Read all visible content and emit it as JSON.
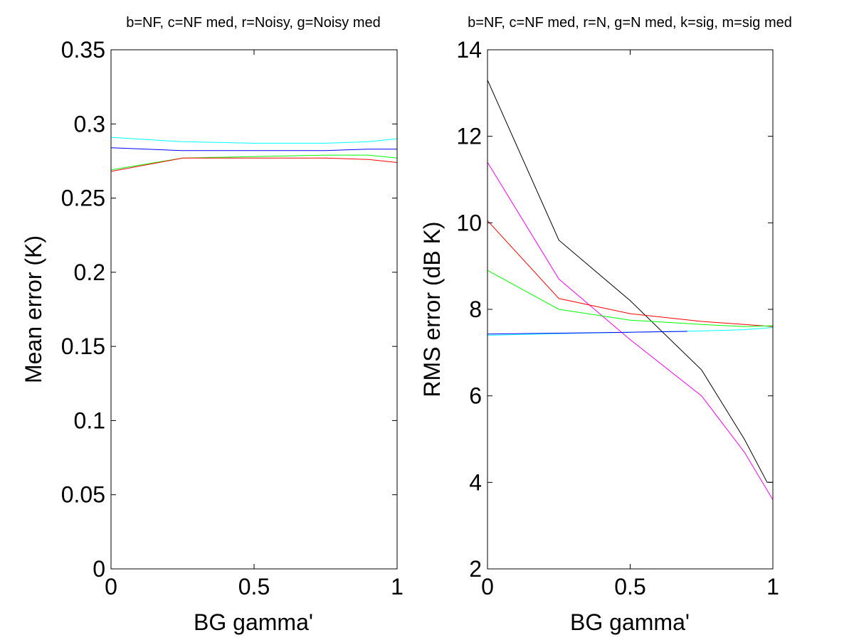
{
  "chart_data": [
    {
      "type": "line",
      "title": "b=NF, c=NF med, r=Noisy, g=Noisy med",
      "xlabel": "BG gamma'",
      "ylabel": "Mean error (K)",
      "xlim": [
        0,
        1
      ],
      "ylim": [
        0,
        0.35
      ],
      "xticks": [
        0,
        0.5,
        1
      ],
      "xtick_labels": [
        "0",
        "0.5",
        "1"
      ],
      "yticks": [
        0,
        0.05,
        0.1,
        0.15,
        0.2,
        0.25,
        0.3,
        0.35
      ],
      "ytick_labels": [
        "0",
        "0.05",
        "0.1",
        "0.15",
        "0.2",
        "0.25",
        "0.3",
        "0.35"
      ],
      "grid": false,
      "series": [
        {
          "color": "#00ffff",
          "x": [
            0,
            0.25,
            0.5,
            0.75,
            0.9,
            1
          ],
          "y": [
            0.291,
            0.288,
            0.287,
            0.287,
            0.288,
            0.29
          ]
        },
        {
          "color": "#0000ff",
          "x": [
            0,
            0.25,
            0.5,
            0.75,
            0.9,
            1
          ],
          "y": [
            0.284,
            0.282,
            0.282,
            0.282,
            0.283,
            0.283
          ]
        },
        {
          "color": "#00ff00",
          "x": [
            0,
            0.25,
            0.5,
            0.75,
            0.9,
            1
          ],
          "y": [
            0.269,
            0.277,
            0.278,
            0.279,
            0.279,
            0.277
          ]
        },
        {
          "color": "#ff0000",
          "x": [
            0,
            0.25,
            0.5,
            0.75,
            0.9,
            1
          ],
          "y": [
            0.268,
            0.277,
            0.277,
            0.277,
            0.276,
            0.274
          ]
        }
      ]
    },
    {
      "type": "line",
      "title": "b=NF, c=NF med, r=N, g=N med, k=sig, m=sig med",
      "xlabel": "BG gamma'",
      "ylabel": "RMS error (dB K)",
      "xlim": [
        0,
        1
      ],
      "ylim": [
        2,
        14
      ],
      "xticks": [
        0,
        0.5,
        1
      ],
      "xtick_labels": [
        "0",
        "0.5",
        "1"
      ],
      "yticks": [
        2,
        4,
        6,
        8,
        10,
        12,
        14
      ],
      "ytick_labels": [
        "2",
        "4",
        "6",
        "8",
        "10",
        "12",
        "14"
      ],
      "grid": false,
      "series": [
        {
          "color": "#000000",
          "x": [
            0,
            0.25,
            0.5,
            0.75,
            0.9,
            0.98,
            1
          ],
          "y": [
            13.3,
            9.6,
            8.2,
            6.6,
            5.0,
            4.0,
            4.0
          ]
        },
        {
          "color": "#ff00ff",
          "x": [
            0,
            0.25,
            0.5,
            0.75,
            0.9,
            1
          ],
          "y": [
            11.4,
            8.7,
            7.3,
            6.0,
            4.7,
            3.6
          ]
        },
        {
          "color": "#ff0000",
          "x": [
            0,
            0.25,
            0.5,
            0.75,
            0.9,
            1
          ],
          "y": [
            10.05,
            8.25,
            7.9,
            7.72,
            7.65,
            7.6
          ]
        },
        {
          "color": "#00ff00",
          "x": [
            0,
            0.25,
            0.5,
            0.75,
            0.9,
            1
          ],
          "y": [
            8.9,
            8.0,
            7.75,
            7.65,
            7.6,
            7.62
          ]
        },
        {
          "color": "#00ffff",
          "x": [
            0,
            0.25,
            0.5,
            0.75,
            0.9,
            1
          ],
          "y": [
            7.4,
            7.44,
            7.47,
            7.5,
            7.53,
            7.58
          ]
        },
        {
          "color": "#0000ff",
          "x": [
            0,
            0.25,
            0.5,
            0.7
          ],
          "y": [
            7.43,
            7.45,
            7.47,
            7.49
          ]
        }
      ]
    }
  ]
}
